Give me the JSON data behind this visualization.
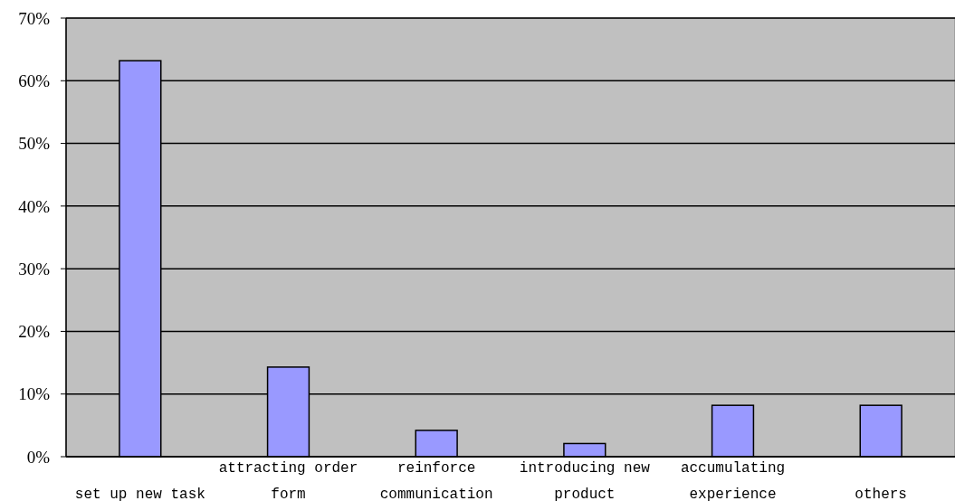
{
  "chart_data": {
    "type": "bar",
    "categories": [
      "set up new task",
      "attracting order form",
      "reinforce communication",
      "introducing new product",
      "accumulating experience",
      "others"
    ],
    "values": [
      63.2,
      14.3,
      4.2,
      2.1,
      8.2,
      8.2
    ],
    "color": "#9999ff",
    "ylim": [
      0,
      70
    ],
    "yticks": [
      {
        "value": 0,
        "label": "0%"
      },
      {
        "value": 10,
        "label": "10%"
      },
      {
        "value": 20,
        "label": "20%"
      },
      {
        "value": 30,
        "label": "30%"
      },
      {
        "value": 40,
        "label": "40%"
      },
      {
        "value": 50,
        "label": "50%"
      },
      {
        "value": 60,
        "label": "60%"
      },
      {
        "value": 70,
        "label": "70%"
      }
    ],
    "grid": "y"
  }
}
